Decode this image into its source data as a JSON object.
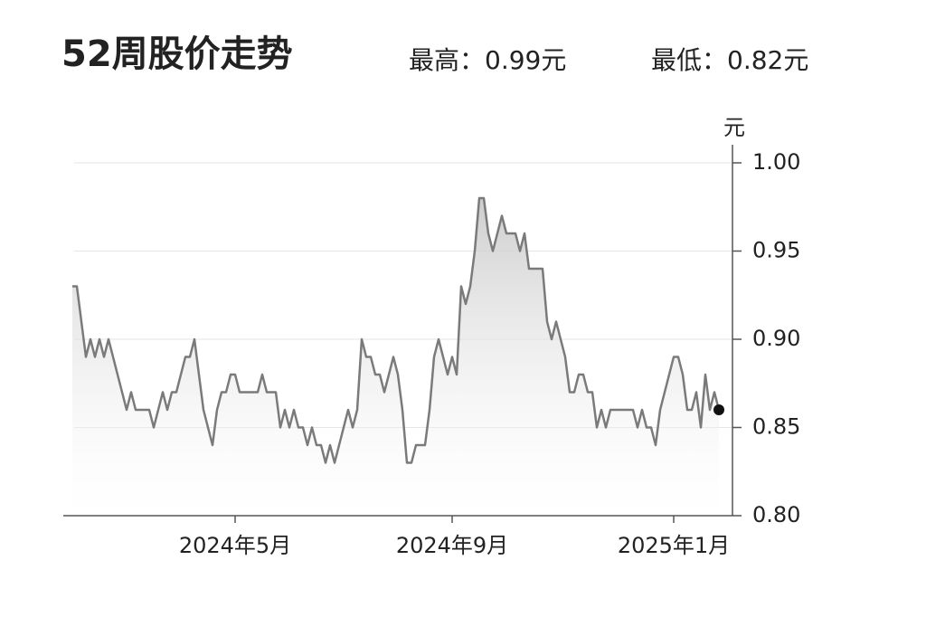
{
  "chart_data": {
    "type": "line",
    "title": "52周股价走势",
    "high_label": "最高：0.99元",
    "low_label": "最低：0.82元",
    "y_unit": "元",
    "values": [
      0.93,
      0.93,
      0.91,
      0.89,
      0.9,
      0.89,
      0.9,
      0.89,
      0.9,
      0.89,
      0.88,
      0.87,
      0.86,
      0.87,
      0.86,
      0.86,
      0.86,
      0.86,
      0.85,
      0.86,
      0.87,
      0.86,
      0.87,
      0.87,
      0.88,
      0.89,
      0.89,
      0.9,
      0.88,
      0.86,
      0.85,
      0.84,
      0.86,
      0.87,
      0.87,
      0.88,
      0.88,
      0.87,
      0.87,
      0.87,
      0.87,
      0.87,
      0.88,
      0.87,
      0.87,
      0.87,
      0.85,
      0.86,
      0.85,
      0.86,
      0.85,
      0.85,
      0.84,
      0.85,
      0.84,
      0.84,
      0.83,
      0.84,
      0.83,
      0.84,
      0.85,
      0.86,
      0.85,
      0.86,
      0.9,
      0.89,
      0.89,
      0.88,
      0.88,
      0.87,
      0.88,
      0.89,
      0.88,
      0.86,
      0.83,
      0.83,
      0.84,
      0.84,
      0.84,
      0.86,
      0.89,
      0.9,
      0.89,
      0.88,
      0.89,
      0.88,
      0.93,
      0.92,
      0.93,
      0.95,
      0.98,
      0.98,
      0.96,
      0.95,
      0.96,
      0.97,
      0.96,
      0.96,
      0.96,
      0.95,
      0.96,
      0.94,
      0.94,
      0.94,
      0.94,
      0.91,
      0.9,
      0.91,
      0.9,
      0.89,
      0.87,
      0.87,
      0.88,
      0.88,
      0.87,
      0.87,
      0.85,
      0.86,
      0.85,
      0.86,
      0.86,
      0.86,
      0.86,
      0.86,
      0.86,
      0.85,
      0.86,
      0.85,
      0.85,
      0.84,
      0.86,
      0.87,
      0.88,
      0.89,
      0.89,
      0.88,
      0.86,
      0.86,
      0.87,
      0.85,
      0.88,
      0.86,
      0.87,
      0.86
    ],
    "color": "#7a7a7a",
    "xlim": [
      0,
      143
    ],
    "xticks": [
      {
        "value": 36,
        "label": "2024年5月"
      },
      {
        "value": 84,
        "label": "2024年9月"
      },
      {
        "value": 133,
        "label": "2025年1月"
      }
    ],
    "ylim": [
      0.8,
      1.0
    ],
    "yticks": [
      {
        "value": 0.8,
        "label": "0.80"
      },
      {
        "value": 0.85,
        "label": "0.85"
      },
      {
        "value": 0.9,
        "label": "0.90"
      },
      {
        "value": 0.95,
        "label": "0.95"
      },
      {
        "value": 1.0,
        "label": "1.00"
      }
    ],
    "grid": true
  }
}
